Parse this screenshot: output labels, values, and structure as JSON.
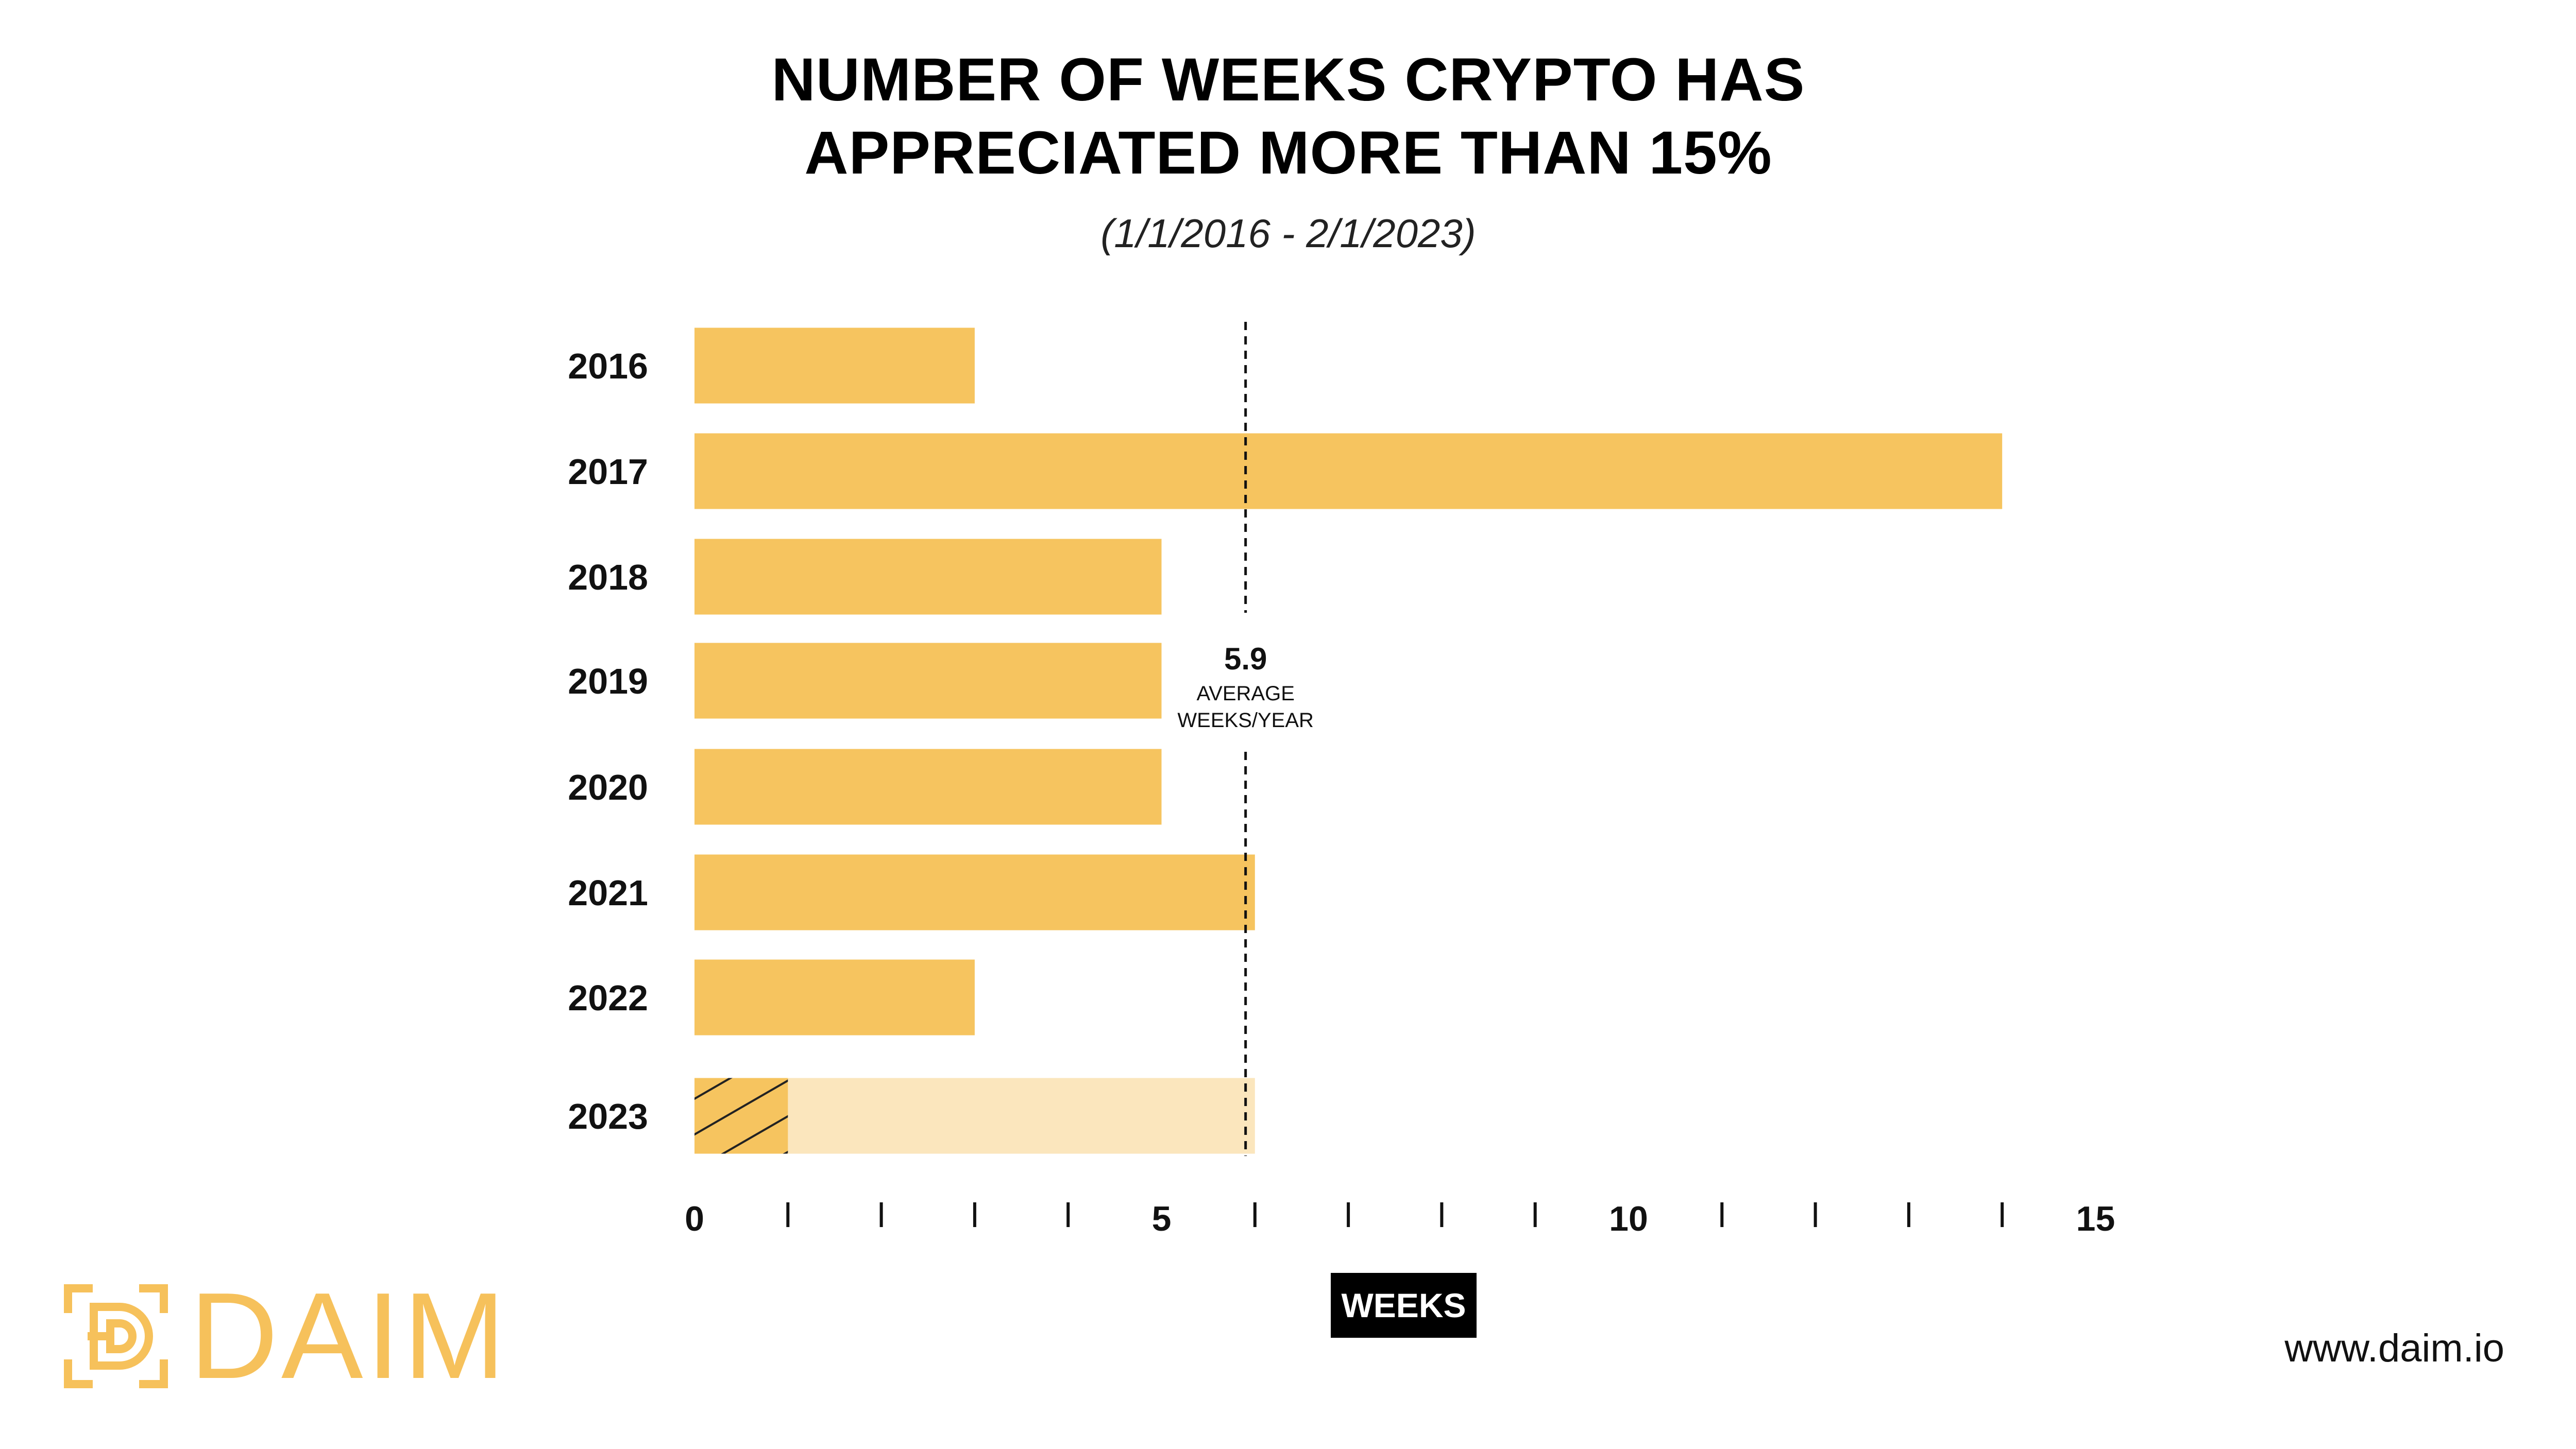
{
  "title_lines": [
    "NUMBER OF WEEKS CRYPTO HAS",
    "APPRECIATED MORE THAN 15%"
  ],
  "subtitle": "(1/1/2016 - 2/1/2023)",
  "chart_data": {
    "type": "bar",
    "orientation": "horizontal",
    "categories": [
      "2016",
      "2017",
      "2018",
      "2019",
      "2020",
      "2021",
      "2022",
      "2023"
    ],
    "values": [
      3,
      14,
      5,
      5,
      5,
      6,
      3,
      1
    ],
    "projection_2023": 6,
    "xlabel": "WEEKS",
    "xlim": [
      0,
      15
    ],
    "x_tick_labels": [
      0,
      5,
      10,
      15
    ],
    "x_tick_step": 1,
    "average": {
      "value": "5.9",
      "x": 5.9,
      "label_lines": [
        "AVERAGE",
        "WEEKS/YEAR"
      ]
    },
    "colors": {
      "bar": "#f6c45f",
      "projection": "#fbe6bd",
      "hatch": "#222222",
      "average_line": "#111111"
    },
    "grid": false,
    "legend": "none"
  },
  "logo": {
    "text": "DAIM",
    "icon": "daim-logo-icon",
    "color": "#f6c15b"
  },
  "website": "www.daim.io"
}
